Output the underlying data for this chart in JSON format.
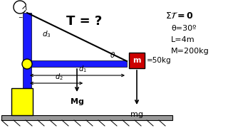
{
  "bg_color": "#ffffff",
  "wall_color": "#1a1aff",
  "rod_color": "#1a1aff",
  "cable_color": "#000000",
  "yellow_box_color": "#ffff00",
  "red_box_color": "#cc0000",
  "ground_color": "#999999",
  "title": "T = ?",
  "theta_val": "θ=30º",
  "L_val": "L=4m",
  "M_val": "M=200kg",
  "m_val": "=50kg",
  "Mg_label": "Mg",
  "mg_label": "mg",
  "d1_label": "d",
  "d2_label": "d",
  "d3_label": "d",
  "theta_label": "θ"
}
